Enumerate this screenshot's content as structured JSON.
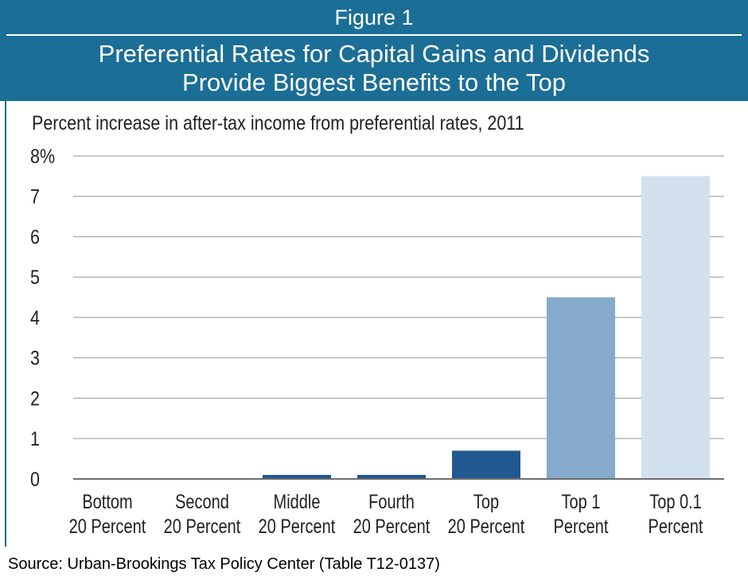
{
  "header": {
    "figure_label": "Figure 1",
    "title_line1": "Preferential Rates for Capital Gains and Dividends",
    "title_line2": "Provide Biggest Benefits to the Top"
  },
  "colors": {
    "header_bg": "#1b6e96",
    "bar_dark": "#21588f",
    "bar_mid": "#85aacb",
    "bar_light": "#d2e0ee",
    "grid": "#a7a9ac",
    "text": "#231f20"
  },
  "chart_data": {
    "type": "bar",
    "title": "Percent increase in after-tax income from preferential rates, 2011",
    "xlabel": "",
    "ylabel": "",
    "ylim": [
      0,
      8
    ],
    "yticks": [
      "0",
      "1",
      "2",
      "3",
      "4",
      "5",
      "6",
      "7",
      "8%"
    ],
    "grid": true,
    "categories": [
      [
        "Bottom",
        "20 Percent"
      ],
      [
        "Second",
        "20 Percent"
      ],
      [
        "Middle",
        "20 Percent"
      ],
      [
        "Fourth",
        "20 Percent"
      ],
      [
        "Top",
        "20 Percent"
      ],
      [
        "Top 1",
        "Percent"
      ],
      [
        "Top 0.1",
        "Percent"
      ]
    ],
    "values": [
      0.0,
      0.0,
      0.1,
      0.1,
      0.7,
      4.5,
      7.5
    ],
    "bar_colors": [
      "#21588f",
      "#21588f",
      "#21588f",
      "#21588f",
      "#21588f",
      "#85aacb",
      "#d2e0ee"
    ]
  },
  "source": "Source: Urban-Brookings Tax Policy Center (Table T12-0137)"
}
